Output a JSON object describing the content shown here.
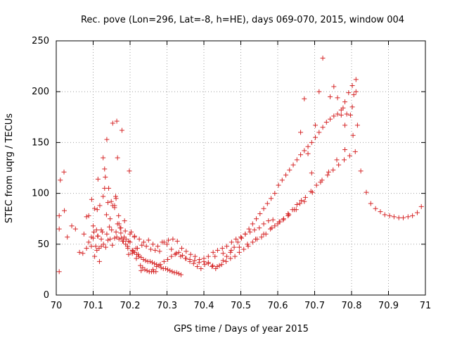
{
  "chart_data": {
    "type": "scatter",
    "title": "Rec. pove (Lon=296, Lat=-8, h=HE), days 069-070, 2015, window 004",
    "xlabel": "GPS time / Days of year 2015",
    "ylabel": "STEC from uqrg / TECUs",
    "xlim": [
      70,
      71
    ],
    "ylim": [
      0,
      250
    ],
    "xticks": [
      70,
      70.1,
      70.2,
      70.3,
      70.4,
      70.5,
      70.6,
      70.7,
      70.8,
      70.9,
      71
    ],
    "xtick_labels": [
      "70",
      "70.1",
      "70.2",
      "70.3",
      "70.4",
      "70.5",
      "70.6",
      "70.7",
      "70.8",
      "70.9",
      "71"
    ],
    "yticks": [
      0,
      50,
      100,
      150,
      200,
      250
    ],
    "ytick_labels": [
      "0",
      "50",
      "100",
      "150",
      "200",
      "250"
    ],
    "grid": true,
    "marker": "+",
    "color": "#d62728",
    "series": [
      {
        "x": [
          70.008,
          70.008,
          70.008,
          70.011,
          70.021,
          70.022,
          70.03,
          70.042,
          70.052,
          70.063,
          70.072,
          70.082,
          70.088,
          70.095,
          70.096,
          70.102,
          70.107,
          70.111,
          70.113,
          70.117,
          70.122,
          70.127,
          70.131,
          70.133,
          70.137,
          70.142,
          70.146,
          70.153,
          70.158,
          70.161,
          70.164,
          70.166,
          70.169,
          70.173,
          70.178,
          70.185,
          70.196,
          70.206,
          70.217,
          70.23,
          70.075,
          70.082,
          70.088,
          70.095,
          70.1,
          70.104,
          70.109,
          70.113,
          70.118,
          70.122,
          70.127,
          70.131,
          70.136,
          70.14,
          70.144,
          70.149,
          70.153,
          70.158,
          70.162,
          70.166,
          70.17,
          70.175,
          70.18,
          70.184,
          70.189,
          70.193,
          70.198,
          70.203,
          70.207,
          70.212,
          70.216,
          70.222,
          70.228,
          70.234,
          70.24,
          70.246,
          70.252,
          70.258,
          70.264,
          70.27,
          70.104,
          70.11,
          70.116,
          70.122,
          70.128,
          70.134,
          70.14,
          70.146,
          70.152,
          70.158,
          70.164,
          70.17,
          70.176,
          70.182,
          70.188,
          70.194,
          70.2,
          70.206,
          70.212,
          70.218,
          70.224,
          70.23,
          70.236,
          70.242,
          70.248,
          70.254,
          70.26,
          70.266,
          70.272,
          70.278,
          70.284,
          70.29,
          70.296,
          70.302,
          70.308,
          70.314,
          70.32,
          70.326,
          70.332,
          70.338,
          70.1,
          70.112,
          70.125,
          70.137,
          70.15,
          70.162,
          70.175,
          70.187,
          70.2,
          70.212,
          70.225,
          70.237,
          70.25,
          70.262,
          70.275,
          70.287,
          70.3,
          70.312,
          70.325,
          70.337,
          70.35,
          70.362,
          70.375,
          70.387,
          70.4,
          70.412,
          70.425,
          70.437,
          70.45,
          70.462,
          70.475,
          70.487,
          70.5,
          70.512,
          70.525,
          70.537,
          70.55,
          70.562,
          70.575,
          70.587,
          70.196,
          70.208,
          70.22,
          70.232,
          70.244,
          70.256,
          70.268,
          70.28,
          70.292,
          70.304,
          70.316,
          70.328,
          70.34,
          70.352,
          70.364,
          70.376,
          70.388,
          70.4,
          70.412,
          70.424,
          70.436,
          70.448,
          70.46,
          70.472,
          70.484,
          70.496,
          70.508,
          70.52,
          70.532,
          70.544,
          70.556,
          70.568,
          70.58,
          70.592,
          70.604,
          70.616,
          70.628,
          70.64,
          70.652,
          70.664,
          70.262,
          70.272,
          70.282,
          70.292,
          70.302,
          70.312,
          70.322,
          70.332,
          70.342,
          70.352,
          70.362,
          70.372,
          70.382,
          70.392,
          70.402,
          70.412,
          70.422,
          70.432,
          70.442,
          70.452,
          70.462,
          70.472,
          70.482,
          70.492,
          70.502,
          70.512,
          70.522,
          70.532,
          70.542,
          70.552,
          70.562,
          70.572,
          70.582,
          70.592,
          70.602,
          70.612,
          70.622,
          70.632,
          70.642,
          70.652,
          70.662,
          70.672,
          70.682,
          70.692,
          70.702,
          70.712,
          70.722,
          70.732,
          70.742,
          70.752,
          70.762,
          70.772,
          70.782,
          70.792,
          70.802,
          70.812,
          70.43,
          70.452,
          70.474,
          70.496,
          70.518,
          70.54,
          70.562,
          70.584,
          70.606,
          70.628,
          70.65,
          70.672,
          70.694,
          70.716,
          70.738,
          70.76,
          70.782,
          70.804,
          70.816,
          70.6,
          70.615,
          70.63,
          70.645,
          70.66,
          70.675,
          70.69,
          70.705,
          70.72,
          70.735,
          70.75,
          70.765,
          70.78,
          70.795,
          70.81,
          70.825,
          70.84,
          70.852,
          70.865,
          70.878,
          70.89,
          70.903,
          70.915,
          70.928,
          70.94,
          70.953,
          70.965,
          70.978,
          70.989,
          70.662,
          70.672,
          70.682,
          70.692,
          70.702,
          70.712,
          70.722,
          70.742,
          70.752,
          70.762,
          70.772,
          70.777,
          70.782,
          70.787,
          70.797,
          70.802,
          70.806,
          70.812
        ],
        "y": [
          23,
          65,
          78,
          113,
          121,
          83,
          57,
          68,
          65,
          42,
          41,
          46,
          52,
          48,
          94,
          62,
          48,
          84,
          114,
          33,
          55,
          135,
          124,
          116,
          153,
          105,
          75,
          169,
          88,
          97,
          171,
          135,
          78,
          66,
          162,
          73,
          53,
          41,
          36,
          24,
          60,
          77,
          78,
          57,
          68,
          85,
          64,
          58,
          88,
          64,
          97,
          105,
          79,
          91,
          67,
          92,
          88,
          86,
          95,
          70,
          70,
          61,
          53,
          57,
          55,
          48,
          122,
          62,
          43,
          58,
          46,
          40,
          29,
          27,
          25,
          24,
          23,
          23,
          23,
          23,
          38,
          44,
          46,
          48,
          50,
          47,
          54,
          55,
          49,
          56,
          57,
          55,
          56,
          53,
          50,
          46,
          52,
          44,
          42,
          40,
          38,
          37,
          35,
          34,
          33,
          33,
          32,
          31,
          30,
          29,
          27,
          26,
          26,
          25,
          24,
          23,
          22,
          22,
          21,
          20,
          56,
          58,
          62,
          60,
          64,
          62,
          66,
          63,
          60,
          57,
          55,
          52,
          54,
          50,
          48,
          52,
          50,
          45,
          41,
          38,
          36,
          35,
          34,
          32,
          36,
          38,
          42,
          44,
          46,
          48,
          52,
          55,
          57,
          60,
          62,
          64,
          66,
          70,
          73,
          74,
          40,
          43,
          46,
          49,
          48,
          45,
          44,
          43,
          52,
          54,
          55,
          53,
          46,
          43,
          40,
          38,
          35,
          33,
          31,
          29,
          28,
          30,
          33,
          36,
          38,
          42,
          45,
          48,
          52,
          55,
          57,
          60,
          65,
          68,
          72,
          75,
          80,
          84,
          89,
          93,
          25,
          28,
          30,
          33,
          35,
          38,
          40,
          42,
          39,
          36,
          33,
          31,
          28,
          26,
          30,
          32,
          28,
          26,
          29,
          34,
          38,
          42,
          47,
          52,
          56,
          60,
          65,
          70,
          75,
          80,
          85,
          90,
          95,
          100,
          108,
          113,
          118,
          123,
          128,
          133,
          138,
          142,
          146,
          150,
          155,
          160,
          165,
          170,
          173,
          176,
          178,
          182,
          190,
          199,
          206,
          212,
          38,
          41,
          44,
          47,
          50,
          55,
          60,
          66,
          72,
          78,
          84,
          92,
          101,
          111,
          121,
          133,
          143,
          157,
          167,
          70,
          74,
          79,
          84,
          90,
          96,
          102,
          108,
          113,
          118,
          123,
          128,
          133,
          137,
          141,
          122,
          101,
          90,
          85,
          82,
          79,
          78,
          77,
          76,
          76,
          77,
          78,
          81,
          87,
          160,
          193,
          139,
          120,
          167,
          200,
          233,
          195,
          205,
          194,
          177,
          184,
          167,
          178,
          177,
          185,
          197,
          200
        ]
      }
    ]
  }
}
